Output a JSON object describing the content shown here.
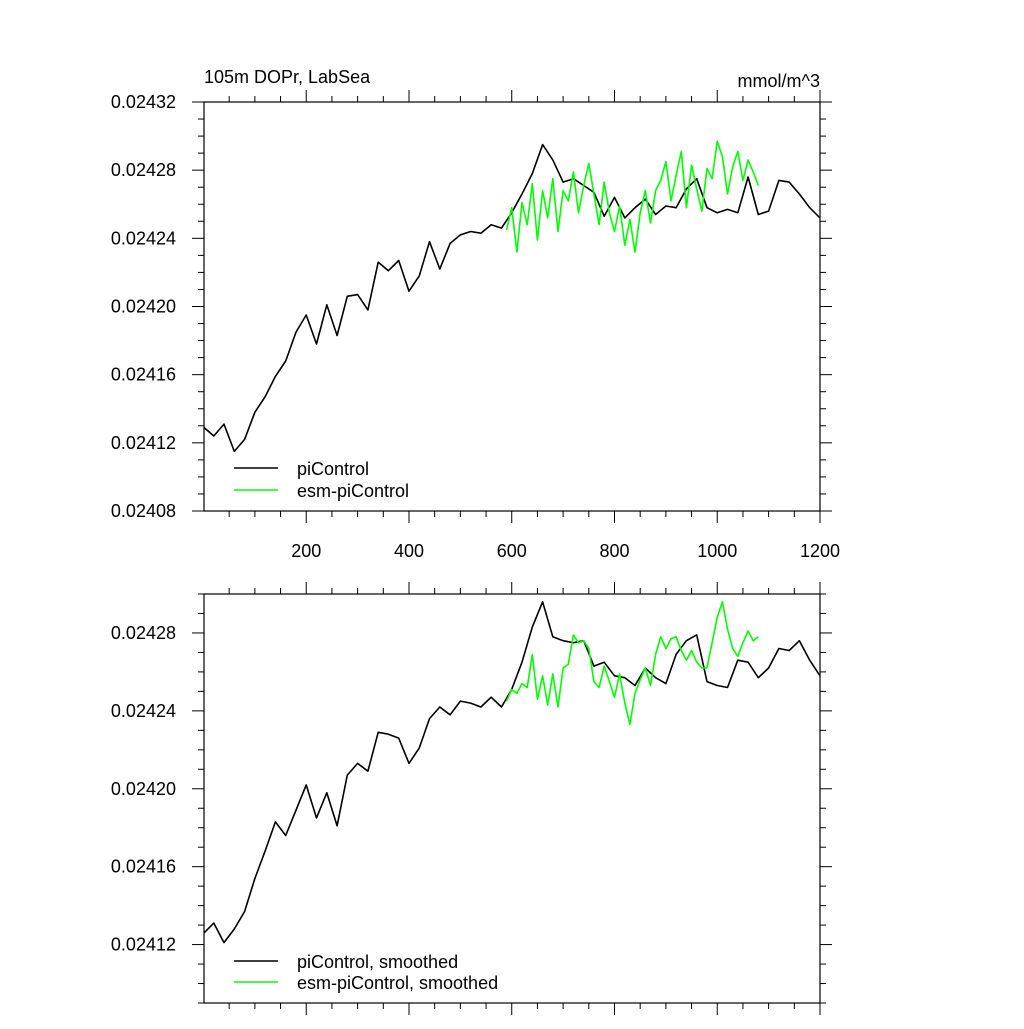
{
  "chart_data": [
    {
      "type": "line",
      "title": "105m DOPr, LabSea",
      "units": "mmol/m^3",
      "xlim": [
        1,
        1200
      ],
      "ylim": [
        0.02408,
        0.02432
      ],
      "x_ticks": [
        200,
        400,
        600,
        800,
        1000,
        1200
      ],
      "x_tick_labels": [
        "200",
        "400",
        "600",
        "800",
        "1000",
        "1200"
      ],
      "y_ticks": [
        0.02408,
        0.02412,
        0.02416,
        0.0242,
        0.02424,
        0.02428,
        0.02432
      ],
      "y_tick_labels": [
        "0.02408",
        "0.02412",
        "0.02416",
        "0.02420",
        "0.02424",
        "0.02428",
        "0.02432"
      ],
      "legend_position": "bottom-left",
      "series": [
        {
          "name": "piControl",
          "color": "#000000",
          "x": [
            1,
            20,
            40,
            60,
            80,
            100,
            120,
            140,
            160,
            180,
            200,
            220,
            240,
            260,
            280,
            300,
            320,
            340,
            360,
            380,
            400,
            420,
            440,
            460,
            480,
            500,
            520,
            540,
            560,
            580,
            600,
            620,
            640,
            660,
            680,
            700,
            720,
            740,
            760,
            780,
            800,
            820,
            840,
            860,
            880,
            900,
            920,
            940,
            960,
            980,
            1000,
            1020,
            1040,
            1060,
            1080,
            1100,
            1120,
            1140,
            1160,
            1180,
            1200
          ],
          "values": [
            0.024129,
            0.024124,
            0.024131,
            0.024115,
            0.024122,
            0.024138,
            0.024147,
            0.024159,
            0.024168,
            0.024185,
            0.024195,
            0.024178,
            0.024201,
            0.024183,
            0.024206,
            0.024207,
            0.024198,
            0.024226,
            0.024221,
            0.024227,
            0.024209,
            0.024218,
            0.024238,
            0.024222,
            0.024237,
            0.024242,
            0.024244,
            0.024243,
            0.024248,
            0.024246,
            0.024255,
            0.024266,
            0.024278,
            0.024295,
            0.024286,
            0.024273,
            0.024275,
            0.024271,
            0.024267,
            0.024253,
            0.024264,
            0.024252,
            0.024258,
            0.024263,
            0.024254,
            0.024259,
            0.024258,
            0.024269,
            0.024275,
            0.024258,
            0.024255,
            0.024257,
            0.024255,
            0.024276,
            0.024254,
            0.024256,
            0.024274,
            0.024273,
            0.024266,
            0.024258,
            0.024252
          ]
        },
        {
          "name": "esm-piControl",
          "color": "#00ff00",
          "x": [
            590,
            600,
            610,
            620,
            630,
            640,
            650,
            660,
            670,
            680,
            690,
            700,
            710,
            720,
            730,
            740,
            750,
            760,
            770,
            780,
            790,
            800,
            810,
            820,
            830,
            840,
            850,
            860,
            870,
            880,
            890,
            900,
            910,
            920,
            930,
            940,
            950,
            960,
            970,
            980,
            990,
            1000,
            1010,
            1020,
            1030,
            1040,
            1050,
            1060,
            1070,
            1080
          ],
          "values": [
            0.024245,
            0.024258,
            0.024232,
            0.024261,
            0.024248,
            0.024272,
            0.024239,
            0.024268,
            0.024252,
            0.024275,
            0.024244,
            0.024268,
            0.024262,
            0.024279,
            0.024255,
            0.024271,
            0.024284,
            0.024266,
            0.024248,
            0.024273,
            0.024255,
            0.024244,
            0.024259,
            0.024236,
            0.024251,
            0.024232,
            0.024255,
            0.024268,
            0.024249,
            0.024268,
            0.024274,
            0.024285,
            0.024262,
            0.024277,
            0.024291,
            0.024258,
            0.024283,
            0.024269,
            0.024256,
            0.024281,
            0.024275,
            0.024297,
            0.024288,
            0.024266,
            0.024282,
            0.024291,
            0.024274,
            0.024286,
            0.024279,
            0.024271
          ]
        }
      ]
    },
    {
      "type": "line",
      "title": "",
      "xlim": [
        1,
        1200
      ],
      "ylim": [
        0.02409,
        0.0243
      ],
      "x_ticks": [
        200,
        400,
        600,
        800,
        1000,
        1200
      ],
      "y_ticks": [
        0.02412,
        0.02416,
        0.0242,
        0.02424,
        0.02428
      ],
      "y_tick_labels": [
        "0.02412",
        "0.02416",
        "0.02420",
        "0.02424",
        "0.02428"
      ],
      "legend_position": "bottom-left",
      "series": [
        {
          "name": "piControl, smoothed",
          "color": "#000000",
          "x": [
            1,
            20,
            40,
            60,
            80,
            100,
            120,
            140,
            160,
            180,
            200,
            220,
            240,
            260,
            280,
            300,
            320,
            340,
            360,
            380,
            400,
            420,
            440,
            460,
            480,
            500,
            520,
            540,
            560,
            580,
            600,
            620,
            640,
            660,
            680,
            700,
            720,
            740,
            760,
            780,
            800,
            820,
            840,
            860,
            880,
            900,
            920,
            940,
            960,
            980,
            1000,
            1020,
            1040,
            1060,
            1080,
            1100,
            1120,
            1140,
            1160,
            1180,
            1200
          ],
          "values": [
            0.024126,
            0.024131,
            0.024121,
            0.024128,
            0.024137,
            0.024154,
            0.024168,
            0.024183,
            0.024176,
            0.024189,
            0.024202,
            0.024185,
            0.024198,
            0.024181,
            0.024207,
            0.024213,
            0.024209,
            0.024229,
            0.024228,
            0.024226,
            0.024213,
            0.024221,
            0.024236,
            0.024242,
            0.024238,
            0.024245,
            0.024244,
            0.024242,
            0.024247,
            0.024242,
            0.024251,
            0.024265,
            0.024283,
            0.024296,
            0.024278,
            0.024276,
            0.024275,
            0.024276,
            0.024263,
            0.024265,
            0.024258,
            0.024257,
            0.024253,
            0.024262,
            0.024257,
            0.024254,
            0.024269,
            0.024276,
            0.024279,
            0.024255,
            0.024253,
            0.024252,
            0.024266,
            0.024265,
            0.024257,
            0.024262,
            0.024272,
            0.024271,
            0.024276,
            0.024266,
            0.024258
          ]
        },
        {
          "name": "esm-piControl, smoothed",
          "color": "#00ff00",
          "x": [
            590,
            600,
            610,
            620,
            630,
            640,
            650,
            660,
            670,
            680,
            690,
            700,
            710,
            720,
            730,
            740,
            750,
            760,
            770,
            780,
            790,
            800,
            810,
            820,
            830,
            840,
            850,
            860,
            870,
            880,
            890,
            900,
            910,
            920,
            930,
            940,
            950,
            960,
            970,
            980,
            990,
            1000,
            1010,
            1020,
            1030,
            1040,
            1050,
            1060,
            1070,
            1080
          ],
          "values": [
            0.024245,
            0.024251,
            0.024249,
            0.024254,
            0.024252,
            0.024269,
            0.024246,
            0.024258,
            0.024243,
            0.024259,
            0.024242,
            0.024262,
            0.024264,
            0.024279,
            0.024275,
            0.024276,
            0.024272,
            0.024255,
            0.024252,
            0.024263,
            0.024255,
            0.024247,
            0.024259,
            0.024244,
            0.024233,
            0.024249,
            0.024256,
            0.024262,
            0.024253,
            0.024269,
            0.024278,
            0.024272,
            0.024277,
            0.024278,
            0.024271,
            0.024266,
            0.024271,
            0.024265,
            0.024262,
            0.024262,
            0.024275,
            0.024288,
            0.024296,
            0.024282,
            0.024272,
            0.024268,
            0.024275,
            0.024281,
            0.024276,
            0.024278
          ]
        }
      ]
    }
  ]
}
